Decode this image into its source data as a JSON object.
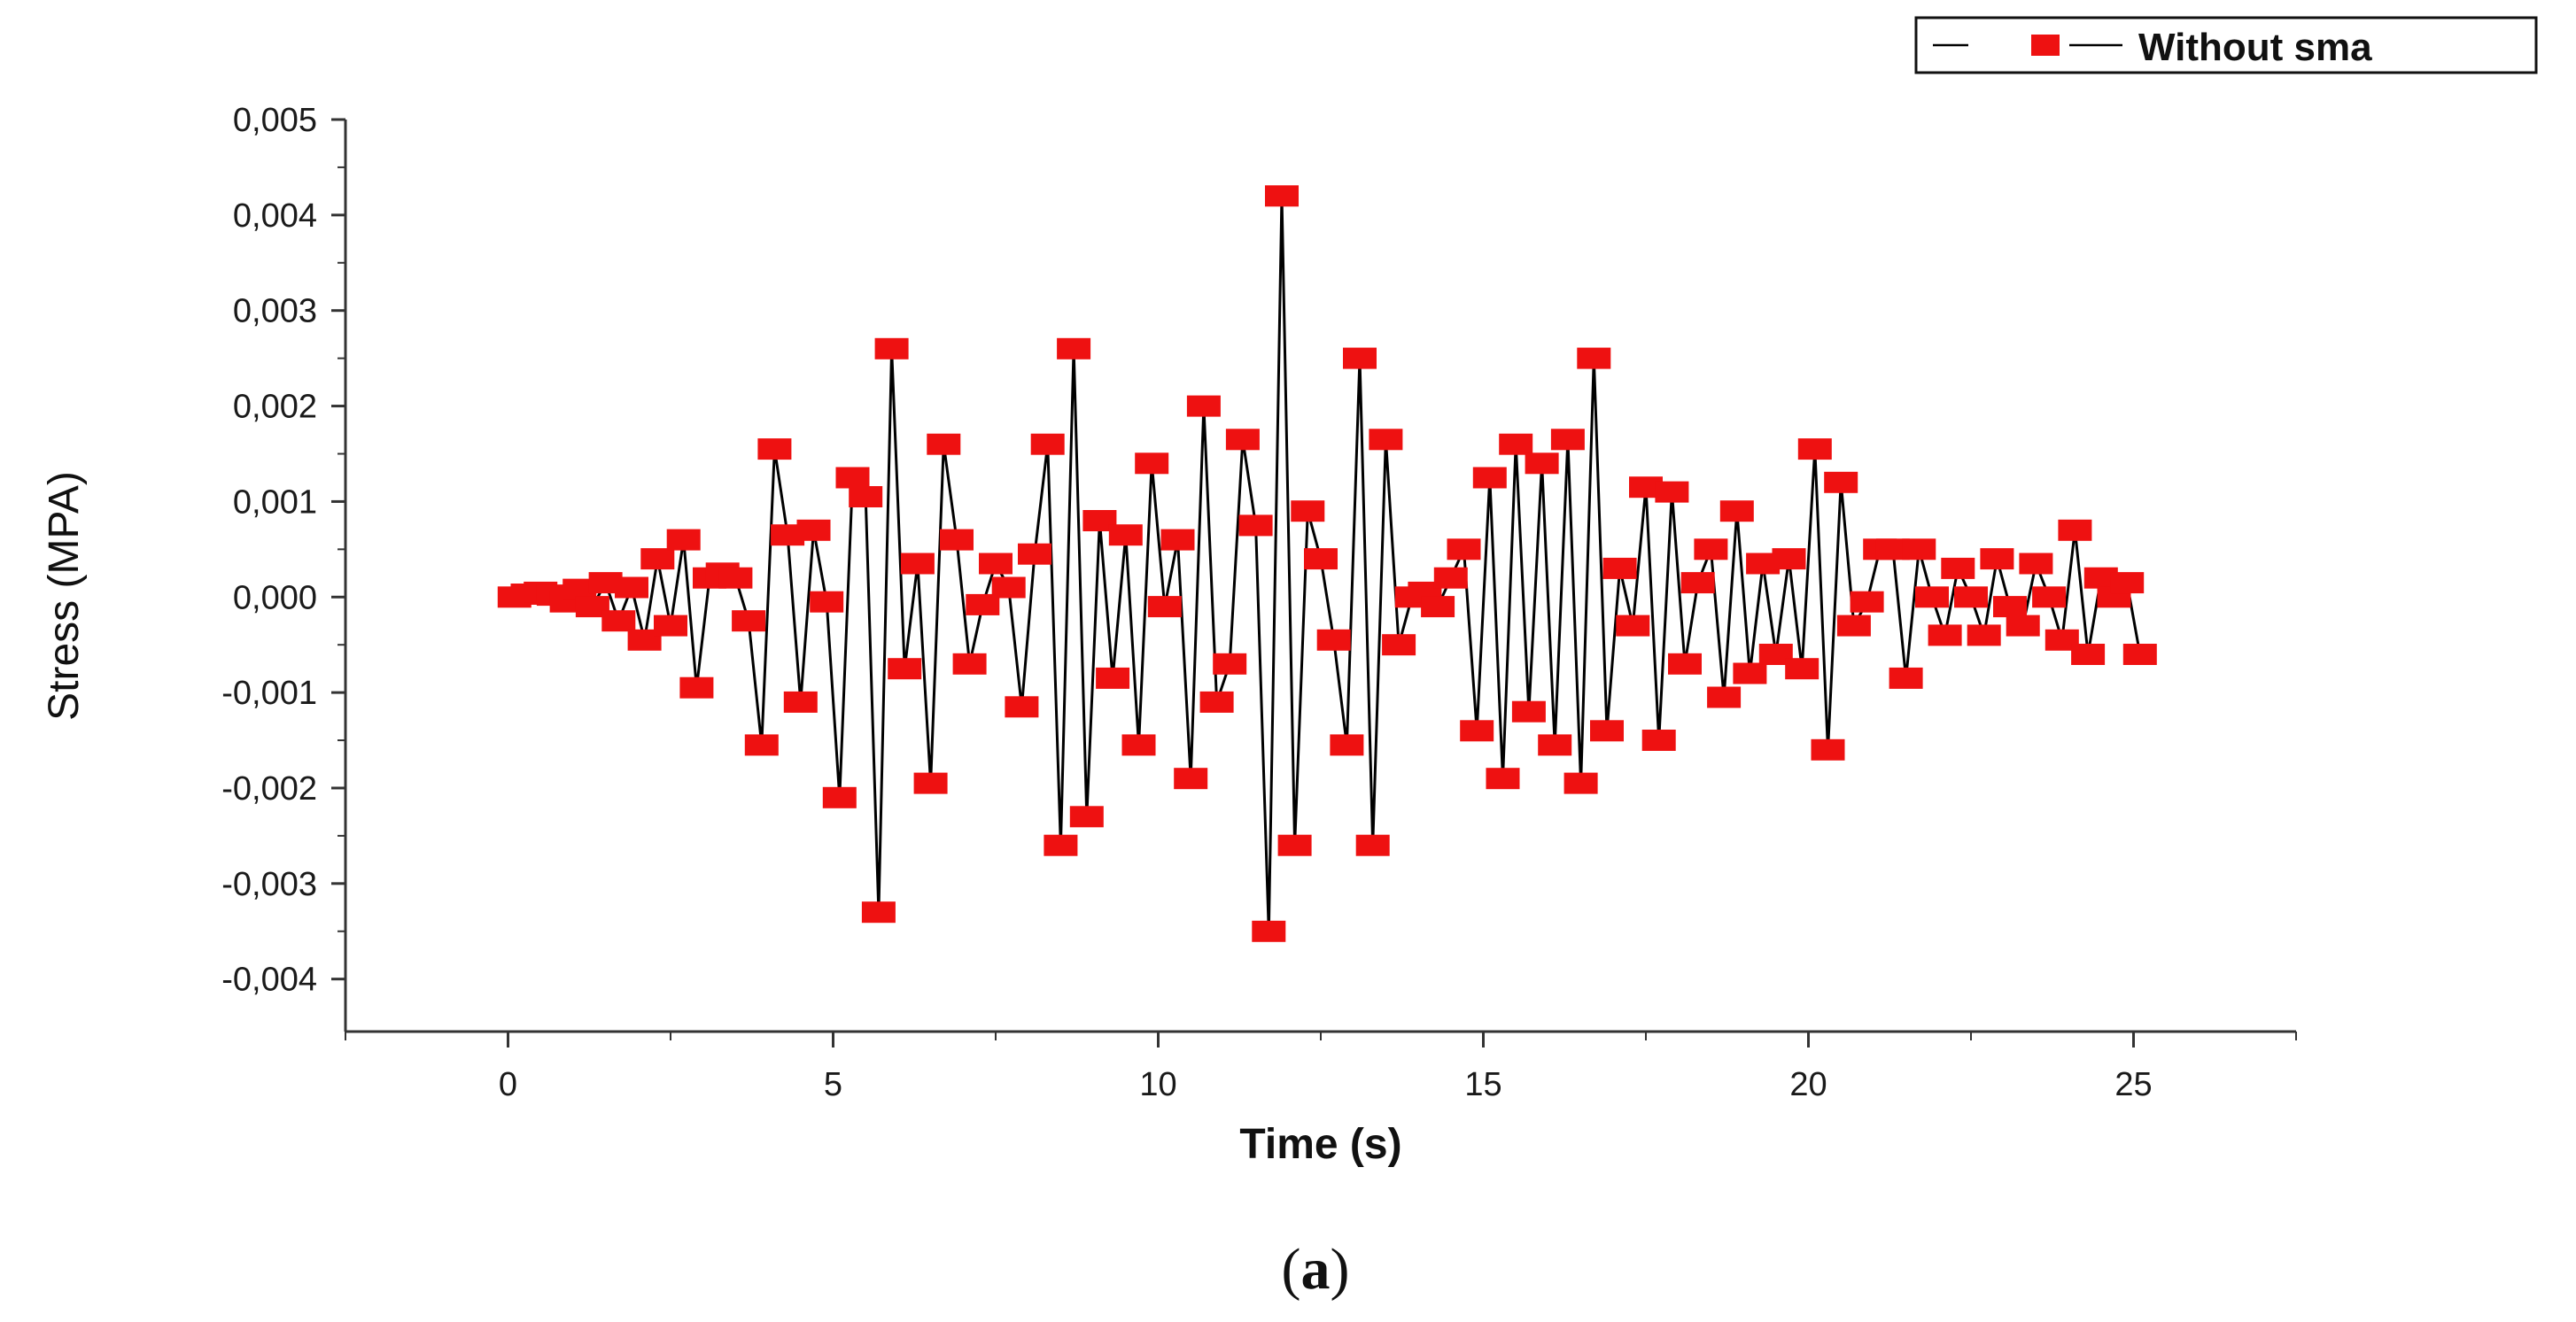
{
  "colors": {
    "line": "#000000",
    "marker": "#ee1111",
    "axis": "#333333"
  },
  "caption": {
    "open": "(",
    "letter": "a",
    "close": ")"
  },
  "chart_data": {
    "type": "line",
    "title": "",
    "xlabel": "Time (s)",
    "ylabel": "Stress (MPA)",
    "xlim": [
      -2.5,
      27.5
    ],
    "ylim": [
      -0.00455,
      0.005
    ],
    "xticks": [
      0,
      5,
      10,
      15,
      20,
      25
    ],
    "xtick_labels": [
      "0",
      "5",
      "10",
      "15",
      "20",
      "25"
    ],
    "yticks": [
      0.005,
      0.004,
      0.003,
      0.002,
      0.001,
      0.0,
      -0.001,
      -0.002,
      -0.003,
      -0.004
    ],
    "ytick_labels": [
      "0,005",
      "0,004",
      "0,003",
      "0,002",
      "0,001",
      "0,000",
      "-0,001",
      "-0,002",
      "-0,003",
      "-0,004"
    ],
    "legend": {
      "position": "top-right",
      "label": "Without sma"
    },
    "series": [
      {
        "name": "Without sma",
        "x": [
          0.1,
          0.3,
          0.5,
          0.7,
          0.9,
          1.1,
          1.3,
          1.5,
          1.7,
          1.9,
          2.1,
          2.3,
          2.5,
          2.7,
          2.9,
          3.1,
          3.3,
          3.5,
          3.7,
          3.9,
          4.1,
          4.3,
          4.5,
          4.7,
          4.9,
          5.1,
          5.3,
          5.5,
          5.7,
          5.9,
          6.1,
          6.3,
          6.5,
          6.7,
          6.9,
          7.1,
          7.3,
          7.5,
          7.7,
          7.9,
          8.1,
          8.3,
          8.5,
          8.7,
          8.9,
          9.1,
          9.3,
          9.5,
          9.7,
          9.9,
          10.1,
          10.3,
          10.5,
          10.7,
          10.9,
          11.1,
          11.3,
          11.5,
          11.7,
          11.9,
          12.1,
          12.3,
          12.5,
          12.7,
          12.9,
          13.1,
          13.3,
          13.5,
          13.7,
          13.9,
          14.1,
          14.3,
          14.5,
          14.7,
          14.9,
          15.1,
          15.3,
          15.5,
          15.7,
          15.9,
          16.1,
          16.3,
          16.5,
          16.7,
          16.9,
          17.1,
          17.3,
          17.5,
          17.7,
          17.9,
          18.1,
          18.3,
          18.5,
          18.7,
          18.9,
          19.1,
          19.3,
          19.5,
          19.7,
          19.9,
          20.1,
          20.3,
          20.5,
          20.7,
          20.9,
          21.1,
          21.3,
          21.5,
          21.7,
          21.9,
          22.1,
          22.3,
          22.5,
          22.7,
          22.9,
          23.1,
          23.3,
          23.5,
          23.7,
          23.9,
          24.1,
          24.3,
          24.5,
          24.7,
          24.9,
          25.1
        ],
        "y": [
          0.0,
          3e-05,
          5e-05,
          2e-05,
          -5e-05,
          8e-05,
          -0.0001,
          0.00015,
          -0.00025,
          0.0001,
          -0.00045,
          0.0004,
          -0.0003,
          0.0006,
          -0.00095,
          0.0002,
          0.00025,
          0.0002,
          -0.00025,
          -0.00155,
          0.00155,
          0.00065,
          -0.0011,
          0.0007,
          -5e-05,
          -0.0021,
          0.00125,
          0.00105,
          -0.0033,
          0.0026,
          -0.00075,
          0.00035,
          -0.00195,
          0.0016,
          0.0006,
          -0.0007,
          -8e-05,
          0.00035,
          0.0001,
          -0.00115,
          0.00045,
          0.0016,
          -0.0026,
          0.0026,
          -0.0023,
          0.0008,
          -0.00085,
          0.00065,
          -0.00155,
          0.0014,
          -0.0001,
          0.0006,
          -0.0019,
          0.002,
          -0.0011,
          -0.0007,
          0.00165,
          0.00075,
          -0.0035,
          0.0042,
          -0.0026,
          0.0009,
          0.0004,
          -0.00045,
          -0.00155,
          0.0025,
          -0.0026,
          0.00165,
          -0.0005,
          0.0,
          5e-05,
          -0.0001,
          0.0002,
          0.0005,
          -0.0014,
          0.00125,
          -0.0019,
          0.0016,
          -0.0012,
          0.0014,
          -0.00155,
          0.00165,
          -0.00195,
          0.0025,
          -0.0014,
          0.0003,
          -0.0003,
          0.00115,
          -0.0015,
          0.0011,
          -0.0007,
          0.00015,
          0.0005,
          -0.00105,
          0.0009,
          -0.0008,
          0.00035,
          -0.0006,
          0.0004,
          -0.00075,
          0.00155,
          -0.0016,
          0.0012,
          -0.0003,
          -5e-05,
          0.0005,
          0.0005,
          -0.00085,
          0.0005,
          0.0,
          -0.0004,
          0.0003,
          0.0,
          -0.0004,
          0.0004,
          -0.0001,
          -0.0003,
          0.00035,
          0.0,
          -0.00045,
          0.0007,
          -0.0006,
          0.0002,
          0.0,
          0.00015,
          -0.0006
        ]
      }
    ]
  }
}
